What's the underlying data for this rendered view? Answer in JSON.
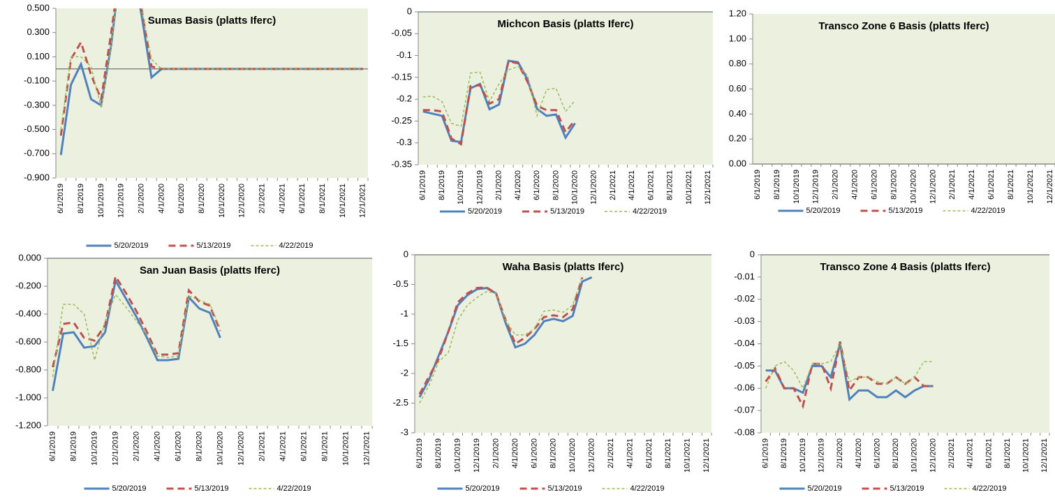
{
  "chart_data": [
    {
      "type": "line",
      "title": "Sumas Basis (platts Iferc)",
      "categories": [
        "6/1/2019",
        null,
        "8/1/2019",
        null,
        "10/1/2019",
        null,
        "12/1/2019",
        null,
        "2/1/2020",
        null,
        "4/1/2020",
        null,
        "6/1/2020",
        null,
        "8/1/2020",
        null,
        "10/1/2020",
        null,
        "12/1/2020",
        null,
        "2/1/2021",
        null,
        "4/1/2021",
        null,
        "6/1/2021",
        null,
        "8/1/2021",
        null,
        "10/1/2021",
        null,
        "12/1/2021"
      ],
      "ylim": [
        -0.9,
        0.5
      ],
      "yticks": [
        {
          "value": 0.5,
          "label": "0.500"
        },
        {
          "value": 0.3,
          "label": "0.300"
        },
        {
          "value": 0.1,
          "label": "0.100"
        },
        {
          "value": -0.1,
          "label": "-0.100"
        },
        {
          "value": -0.3,
          "label": "-0.300"
        },
        {
          "value": -0.5,
          "label": "-0.500"
        },
        {
          "value": -0.7,
          "label": "-0.700"
        },
        {
          "value": -0.9,
          "label": "-0.900"
        }
      ],
      "grid": false,
      "legend": "bottom",
      "background": "#ebf1de",
      "series": [
        {
          "name": "5/20/2019",
          "color": "#4f81bd",
          "dash": "solid",
          "values": [
            -0.71,
            -0.13,
            0.04,
            -0.25,
            -0.3,
            0.2,
            0.9,
            0.9,
            0.45,
            -0.07,
            0,
            0,
            0,
            0,
            0,
            0,
            0,
            0,
            0,
            0,
            0,
            0,
            0,
            0,
            0,
            0,
            0,
            0,
            0,
            0,
            0
          ]
        },
        {
          "name": "5/13/2019",
          "color": "#c0504d",
          "dash": "dashed",
          "values": [
            -0.55,
            0.08,
            0.22,
            -0.05,
            -0.25,
            0.3,
            0.9,
            0.9,
            0.5,
            0.02,
            0,
            0,
            0,
            0,
            0,
            0,
            0,
            0,
            0,
            0,
            0,
            0,
            0,
            0,
            0,
            0,
            0,
            0,
            0,
            0,
            0
          ]
        },
        {
          "name": "4/22/2019",
          "color": "#9bbb59",
          "dash": "dotted",
          "values": [
            -0.5,
            0.1,
            0.1,
            0.02,
            -0.32,
            0.2,
            0.9,
            0.9,
            0.5,
            0.08,
            0,
            0,
            0,
            0,
            0,
            0,
            0,
            0,
            0,
            0,
            0,
            0,
            0,
            0,
            0,
            0,
            0,
            0,
            0,
            0,
            0
          ]
        }
      ]
    },
    {
      "type": "line",
      "title": "Michcon Basis (platts Iferc)",
      "categories": [
        "6/1/2019",
        null,
        "8/1/2019",
        null,
        "10/1/2019",
        null,
        "12/1/2019",
        null,
        "2/1/2020",
        null,
        "4/1/2020",
        null,
        "6/1/2020",
        null,
        "8/1/2020",
        null,
        "10/1/2020",
        null,
        "12/1/2020",
        null,
        "2/1/2021",
        null,
        "4/1/2021",
        null,
        "6/1/2021",
        null,
        "8/1/2021",
        null,
        "10/1/2021",
        null,
        "12/1/2021"
      ],
      "ylim": [
        -0.35,
        0
      ],
      "yticks": [
        0,
        -0.05,
        -0.1,
        -0.15,
        -0.2,
        -0.25,
        -0.3,
        -0.35
      ],
      "grid": false,
      "legend": "bottom",
      "background": "#ebf1de",
      "series": [
        {
          "name": "5/20/2019",
          "color": "#4f81bd",
          "dash": "solid",
          "values": [
            -0.228,
            -0.233,
            -0.238,
            -0.295,
            -0.298,
            -0.175,
            -0.165,
            -0.223,
            -0.212,
            -0.112,
            -0.115,
            -0.155,
            -0.222,
            -0.238,
            -0.235,
            -0.288,
            -0.255,
            null,
            null,
            null,
            null,
            null,
            null,
            null,
            null,
            null,
            null,
            null,
            null,
            null,
            null
          ]
        },
        {
          "name": "5/13/2019",
          "color": "#c0504d",
          "dash": "dashed",
          "values": [
            -0.225,
            -0.225,
            -0.228,
            -0.29,
            -0.303,
            -0.17,
            -0.168,
            -0.21,
            -0.2,
            -0.113,
            -0.118,
            -0.16,
            -0.215,
            -0.225,
            -0.225,
            -0.275,
            -0.248,
            null,
            null,
            null,
            null,
            null,
            null,
            null,
            null,
            null,
            null,
            null,
            null,
            null,
            null
          ]
        },
        {
          "name": "4/22/2019",
          "color": "#9bbb59",
          "dash": "dotted",
          "values": [
            -0.195,
            -0.193,
            -0.205,
            -0.255,
            -0.262,
            -0.14,
            -0.138,
            -0.205,
            -0.165,
            -0.133,
            -0.125,
            -0.145,
            -0.238,
            -0.178,
            -0.175,
            -0.228,
            -0.203,
            null,
            null,
            null,
            null,
            null,
            null,
            null,
            null,
            null,
            null,
            null,
            null,
            null,
            null
          ]
        }
      ]
    },
    {
      "type": "line",
      "title": "Transco Zone 6  Basis (platts Iferc)",
      "categories": [
        "6/1/2019",
        null,
        "8/1/2019",
        null,
        "10/1/2019",
        null,
        "12/1/2019",
        null,
        "2/1/2020",
        null,
        "4/1/2020",
        null,
        "6/1/2020",
        null,
        "8/1/2020",
        null,
        "10/1/2020",
        null,
        "12/1/2020",
        null,
        "2/1/2021",
        null,
        "4/1/2021",
        null,
        "6/1/2021",
        null,
        "8/1/2021",
        null,
        "10/1/2021",
        null,
        "12/1/2021"
      ],
      "ylim": [
        0,
        1.2
      ],
      "yticks": [
        {
          "value": 1.2,
          "label": "1.20"
        },
        {
          "value": 1.0,
          "label": "1.00"
        },
        {
          "value": 0.8,
          "label": "0.80"
        },
        {
          "value": 0.6,
          "label": "0.60"
        },
        {
          "value": 0.4,
          "label": "0.40"
        },
        {
          "value": 0.2,
          "label": "0.20"
        },
        {
          "value": 0,
          "label": "0.00"
        }
      ],
      "grid": false,
      "legend": "bottom",
      "background": "#ebf1de",
      "series": [
        {
          "name": "5/20/2019",
          "color": "#4f81bd",
          "dash": "solid",
          "values": [
            null,
            null,
            null,
            null,
            null,
            null,
            null,
            null,
            null,
            null,
            null,
            null,
            null,
            null,
            null,
            null,
            null,
            null,
            null,
            null,
            null,
            null,
            null,
            null,
            null,
            null,
            null,
            null,
            null,
            null,
            null
          ]
        },
        {
          "name": "5/13/2019",
          "color": "#c0504d",
          "dash": "dashed",
          "values": [
            null,
            null,
            null,
            null,
            null,
            null,
            null,
            null,
            null,
            null,
            null,
            null,
            null,
            null,
            null,
            null,
            null,
            null,
            null,
            null,
            null,
            null,
            null,
            null,
            null,
            null,
            null,
            null,
            null,
            null,
            null
          ]
        },
        {
          "name": "4/22/2019",
          "color": "#9bbb59",
          "dash": "dotted",
          "values": [
            null,
            null,
            null,
            null,
            null,
            null,
            null,
            null,
            null,
            null,
            null,
            null,
            null,
            null,
            null,
            null,
            null,
            null,
            null,
            null,
            null,
            null,
            null,
            null,
            null,
            null,
            null,
            null,
            null,
            null,
            null
          ]
        }
      ]
    },
    {
      "type": "line",
      "title": "San Juan Basis (platts Iferc)",
      "categories": [
        "6/1/2019",
        null,
        "8/1/2019",
        null,
        "10/1/2019",
        null,
        "12/1/2019",
        null,
        "2/1/2020",
        null,
        "4/1/2020",
        null,
        "6/1/2020",
        null,
        "8/1/2020",
        null,
        "10/1/2020",
        null,
        "12/1/2020",
        null,
        "2/1/2021",
        null,
        "4/1/2021",
        null,
        "6/1/2021",
        null,
        "8/1/2021",
        null,
        "10/1/2021",
        null,
        "12/1/2021"
      ],
      "ylim": [
        -1.2,
        0
      ],
      "yticks": [
        {
          "value": 0,
          "label": "0.000"
        },
        {
          "value": -0.2,
          "label": "-0.200"
        },
        {
          "value": -0.4,
          "label": "-0.400"
        },
        {
          "value": -0.6,
          "label": "-0.600"
        },
        {
          "value": -0.8,
          "label": "-0.800"
        },
        {
          "value": -1.0,
          "label": "-1.000"
        },
        {
          "value": -1.2,
          "label": "-1.200"
        }
      ],
      "grid": false,
      "legend": "bottom",
      "background": "#ebf1de",
      "series": [
        {
          "name": "5/20/2019",
          "color": "#4f81bd",
          "dash": "solid",
          "values": [
            -0.95,
            -0.54,
            -0.53,
            -0.64,
            -0.63,
            -0.53,
            -0.16,
            -0.29,
            -0.42,
            -0.57,
            -0.73,
            -0.73,
            -0.72,
            -0.28,
            -0.36,
            -0.39,
            -0.57,
            null,
            null,
            null,
            null,
            null,
            null,
            null,
            null,
            null,
            null,
            null,
            null,
            null,
            null
          ]
        },
        {
          "name": "5/13/2019",
          "color": "#c0504d",
          "dash": "dashed",
          "values": [
            -0.78,
            -0.47,
            -0.46,
            -0.57,
            -0.59,
            -0.48,
            -0.13,
            -0.25,
            -0.38,
            -0.53,
            -0.69,
            -0.69,
            -0.68,
            -0.23,
            -0.31,
            -0.34,
            -0.52,
            null,
            null,
            null,
            null,
            null,
            null,
            null,
            null,
            null,
            null,
            null,
            null,
            null,
            null
          ]
        },
        {
          "name": "4/22/2019",
          "color": "#9bbb59",
          "dash": "dotted",
          "values": [
            -0.85,
            -0.33,
            -0.33,
            -0.4,
            -0.73,
            -0.45,
            -0.26,
            -0.35,
            -0.45,
            -0.55,
            -0.7,
            -0.71,
            -0.7,
            -0.27,
            -0.3,
            -0.33,
            -0.5,
            null,
            null,
            null,
            null,
            null,
            null,
            null,
            null,
            null,
            null,
            null,
            null,
            null,
            null
          ]
        }
      ]
    },
    {
      "type": "line",
      "title": "Waha Basis (platts Iferc)",
      "categories": [
        "6/1/2019",
        null,
        "8/1/2019",
        null,
        "10/1/2019",
        null,
        "12/1/2019",
        null,
        "2/1/2020",
        null,
        "4/1/2020",
        null,
        "6/1/2020",
        null,
        "8/1/2020",
        null,
        "10/1/2020",
        null,
        "12/1/2020",
        null,
        "2/1/2021",
        null,
        "4/1/2021",
        null,
        "6/1/2021",
        null,
        "8/1/2021",
        null,
        "10/1/2021",
        null,
        "12/1/2021"
      ],
      "ylim": [
        -3,
        0
      ],
      "yticks": [
        0,
        -0.5,
        -1,
        -1.5,
        -2,
        -2.5,
        -3
      ],
      "grid": false,
      "legend": "bottom",
      "background": "#ebf1de",
      "series": [
        {
          "name": "5/20/2019",
          "color": "#4f81bd",
          "dash": "solid",
          "values": [
            -2.4,
            -2.1,
            -1.7,
            -1.3,
            -0.85,
            -0.68,
            -0.58,
            -0.56,
            -0.65,
            -1.15,
            -1.56,
            -1.5,
            -1.35,
            -1.12,
            -1.08,
            -1.12,
            -1.03,
            -0.45,
            -0.38,
            null,
            null,
            null,
            null,
            null,
            null,
            null,
            null,
            null,
            null,
            null,
            null
          ]
        },
        {
          "name": "5/13/2019",
          "color": "#c0504d",
          "dash": "dashed",
          "values": [
            -2.35,
            -2.05,
            -1.75,
            -1.3,
            -0.8,
            -0.65,
            -0.56,
            -0.55,
            -0.65,
            -1.1,
            -1.5,
            -1.4,
            -1.25,
            -1.05,
            -1.02,
            -1.05,
            -0.92,
            -0.38,
            null,
            null,
            null,
            null,
            null,
            null,
            null,
            null,
            null,
            null,
            null,
            null,
            null
          ]
        },
        {
          "name": "4/22/2019",
          "color": "#9bbb59",
          "dash": "dotted",
          "values": [
            -2.5,
            -2.2,
            -1.8,
            -1.65,
            -1.1,
            -0.85,
            -0.72,
            -0.62,
            -0.65,
            -1.1,
            -1.35,
            -1.35,
            -1.25,
            -0.95,
            -0.93,
            -0.97,
            -0.85,
            -0.35,
            null,
            null,
            null,
            null,
            null,
            null,
            null,
            null,
            null,
            null,
            null,
            null,
            null
          ]
        }
      ]
    },
    {
      "type": "line",
      "title": "Transco Zone 4 Basis (platts Iferc)",
      "categories": [
        "6/1/2019",
        null,
        "8/1/2019",
        null,
        "10/1/2019",
        null,
        "12/1/2019",
        null,
        "2/1/2020",
        null,
        "4/1/2020",
        null,
        "6/1/2020",
        null,
        "8/1/2020",
        null,
        "10/1/2020",
        null,
        "12/1/2020",
        null,
        "2/1/2021",
        null,
        "4/1/2021",
        null,
        "6/1/2021",
        null,
        "8/1/2021",
        null,
        "10/1/2021",
        null,
        "12/1/2021"
      ],
      "ylim": [
        -0.08,
        0
      ],
      "yticks": [
        0,
        -0.01,
        -0.02,
        -0.03,
        -0.04,
        -0.05,
        -0.06,
        -0.07,
        -0.08
      ],
      "grid": false,
      "legend": "bottom",
      "background": "#ebf1de",
      "series": [
        {
          "name": "5/20/2019",
          "color": "#4f81bd",
          "dash": "solid",
          "values": [
            -0.052,
            -0.052,
            -0.06,
            -0.06,
            -0.062,
            -0.05,
            -0.05,
            -0.055,
            -0.04,
            -0.065,
            -0.061,
            -0.061,
            -0.064,
            -0.064,
            -0.061,
            -0.064,
            -0.061,
            -0.059,
            -0.059,
            null,
            null,
            null,
            null,
            null,
            null,
            null,
            null,
            null,
            null,
            null,
            null
          ]
        },
        {
          "name": "5/13/2019",
          "color": "#c0504d",
          "dash": "dashed",
          "values": [
            -0.057,
            -0.051,
            -0.06,
            -0.06,
            -0.068,
            -0.049,
            -0.049,
            -0.06,
            -0.039,
            -0.061,
            -0.055,
            -0.055,
            -0.058,
            -0.058,
            -0.055,
            -0.058,
            -0.055,
            -0.059,
            -0.059,
            null,
            null,
            null,
            null,
            null,
            null,
            null,
            null,
            null,
            null,
            null,
            null
          ]
        },
        {
          "name": "4/22/2019",
          "color": "#9bbb59",
          "dash": "dotted",
          "values": [
            -0.06,
            -0.05,
            -0.048,
            -0.052,
            -0.06,
            -0.049,
            -0.049,
            -0.048,
            -0.04,
            -0.057,
            -0.055,
            -0.055,
            -0.057,
            -0.058,
            -0.055,
            -0.058,
            -0.055,
            -0.048,
            -0.048,
            null,
            null,
            null,
            null,
            null,
            null,
            null,
            null,
            null,
            null,
            null,
            null
          ]
        }
      ]
    }
  ]
}
